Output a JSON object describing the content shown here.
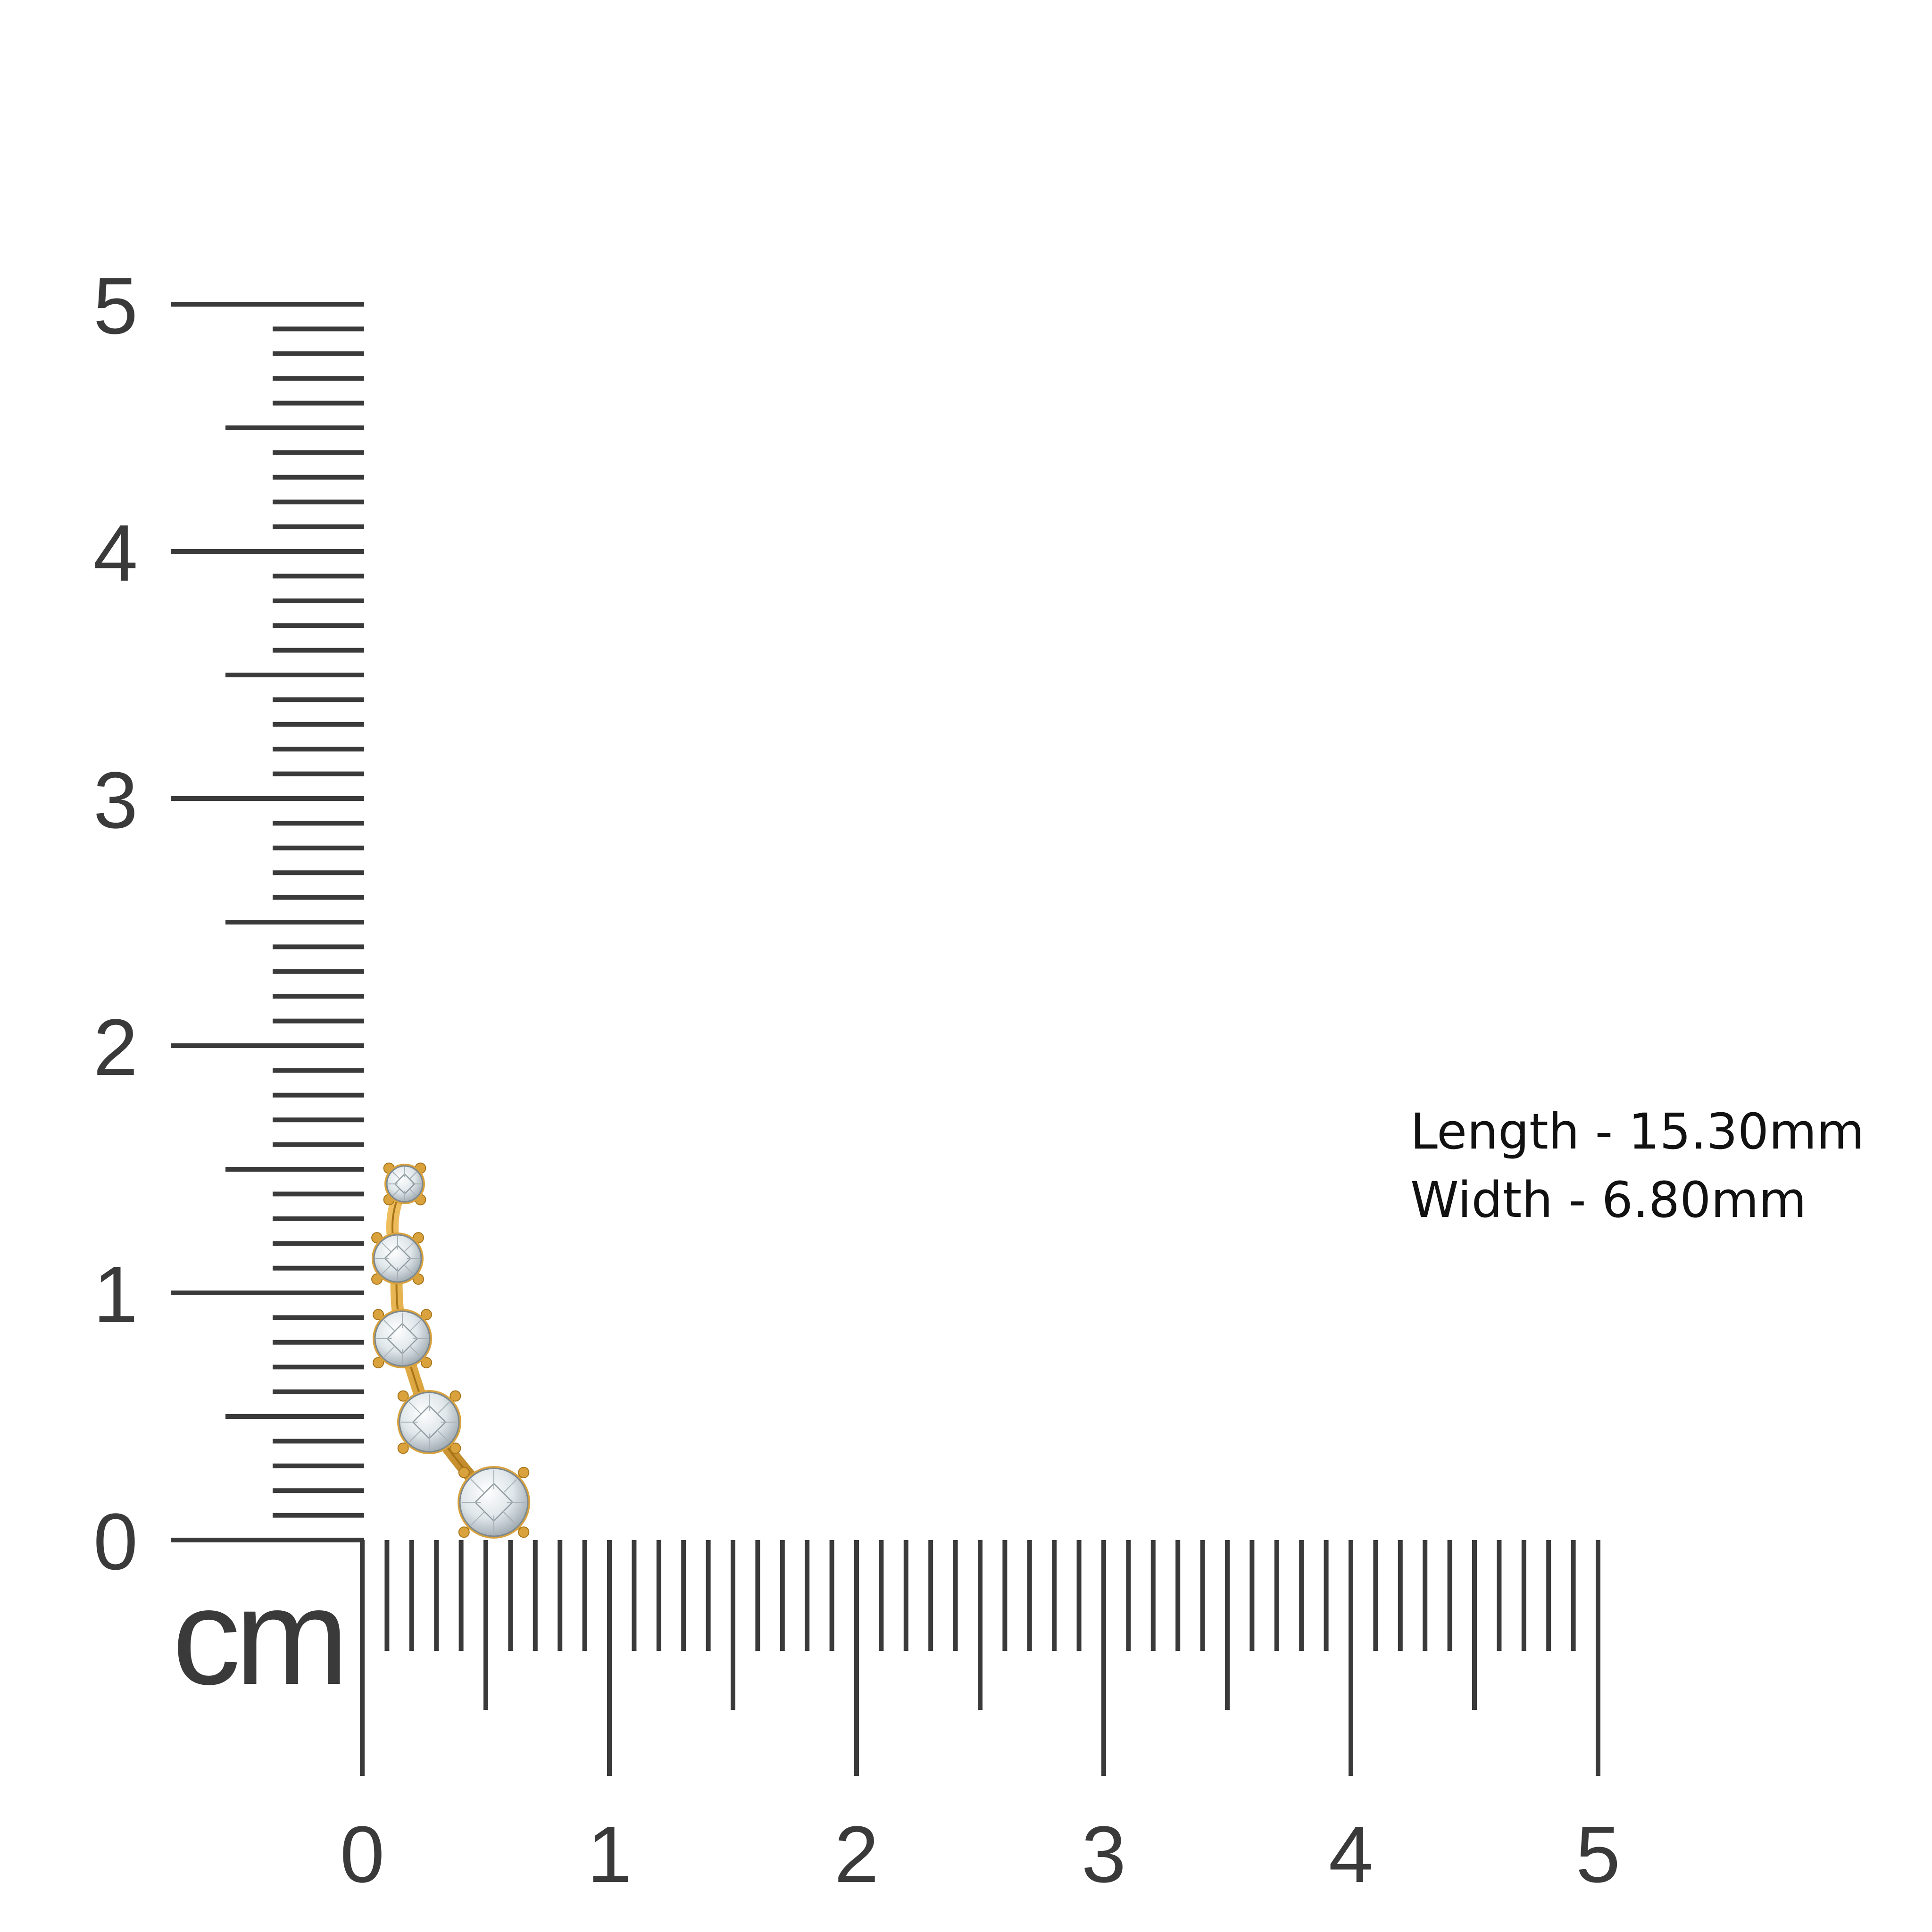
{
  "ruler": {
    "unit": "cm",
    "max_cm": 5,
    "subdivisions_per_cm": 10,
    "x_labels": [
      "0",
      "1",
      "2",
      "3",
      "4",
      "5"
    ],
    "y_labels": [
      "0",
      "1",
      "2",
      "3",
      "4",
      "5"
    ],
    "tick_color": "#3a3a3a"
  },
  "dimensions": {
    "length": "Length - 15.30mm",
    "width": "Width - 6.80mm"
  },
  "product": {
    "icon": "earring-climber-icon",
    "stone_count": 5,
    "metal_color": "#d9a23c",
    "stone_color": "#e4eaed"
  }
}
